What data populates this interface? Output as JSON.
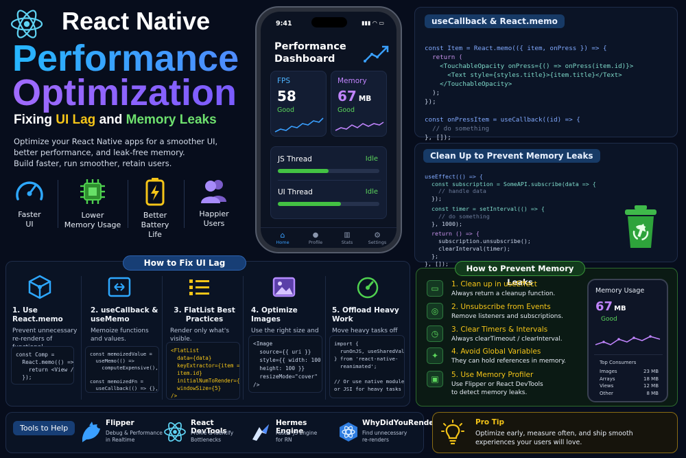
{
  "header": {
    "line1": "React Native",
    "line2": "Performance",
    "line3": "Optimization",
    "subtitle_a": "Fixing ",
    "subtitle_b": "UI Lag",
    "subtitle_c": " and ",
    "subtitle_d": "Memory Leaks",
    "desc1": "Optimize your React Native apps for a smoother UI,",
    "desc2": "better performance, and leak-free memory.",
    "desc3": "Build faster, run smoother, retain users."
  },
  "benefits": [
    {
      "label1": "Faster",
      "label2": "UI",
      "icon": "gauge-icon"
    },
    {
      "label1": "Lower",
      "label2": "Memory Usage",
      "icon": "chip-icon"
    },
    {
      "label1": "Better",
      "label2": "Battery Life",
      "icon": "battery-icon"
    },
    {
      "label1": "Happier",
      "label2": "Users",
      "icon": "users-icon"
    }
  ],
  "phone": {
    "time": "9:41",
    "title1": "Performance",
    "title2": "Dashboard",
    "fps": {
      "label": "FPS",
      "value": "58",
      "status": "Good"
    },
    "memory": {
      "label": "Memory",
      "value": "67",
      "unit": "MB",
      "status": "Good"
    },
    "js_thread": {
      "label": "JS Thread",
      "status": "Idle",
      "level": 0.5
    },
    "ui_thread": {
      "label": "UI Thread",
      "status": "Idle",
      "level": 0.62
    },
    "tabs": [
      "Home",
      "Profile",
      "Stats",
      "Settings"
    ]
  },
  "memo_panel": {
    "title": "useCallback & React.memo",
    "lines": [
      "const Item = React.memo(({ item, onPress }) => {",
      "  return (",
      "    <TouchableOpacity onPress={() => onPress(item.id)}>",
      "      <Text style={styles.title}>{item.title}</Text>",
      "    </TouchableOpacity>",
      "  );",
      "});",
      "",
      "const onPressItem = useCallback((id) => {",
      "  // do something",
      "}, []);"
    ]
  },
  "cleanup_panel": {
    "title": "Clean Up to Prevent Memory Leaks",
    "lines": [
      "useEffect(() => {",
      "  const subscription = SomeAPI.subscribe(data => {",
      "    // handle data",
      "  });",
      "",
      "  const timer = setInterval(() => {",
      "    // do something",
      "  }, 1000);",
      "",
      "  return () => {",
      "    subscription.unsubscribe();",
      "    clearInterval(timer);",
      "  };",
      "}, []);"
    ]
  },
  "fix_lag": {
    "title": "How to Fix UI Lag",
    "steps": [
      {
        "title": "1. Use React.memo",
        "desc": "Prevent unnecessary re-renders of functional components.",
        "code": "const Comp =\n  React.memo(() => {\n    return <View />;\n  });"
      },
      {
        "title": "2. useCallback & useMemo",
        "desc": "Memoize functions and values.",
        "code": "const memoizedValue =\n  useMemo(() =>\n    computeExpensive(), []);\n\nconst memoizedFn =\n  useCallback(() => {}, []);"
      },
      {
        "title": "3. FlatList Best Practices",
        "desc": "Render only what's visible.",
        "code": "<FlatList\n  data={data}\n  keyExtractor={item =>\n  item.id}\n  initialNumToRender={10}\n  windowSize={5}\n/>"
      },
      {
        "title": "4. Optimize Images",
        "desc": "Use the right size and enable caching.",
        "code": "<Image\n  source={{ uri }}\n  style={{ width: 100,\n  height: 100 }}\n  resizeMode=\"cover\"\n/>"
      },
      {
        "title": "5. Offload Heavy Work",
        "desc": "Move heavy tasks off the JS thread.",
        "code": "import {\n  runOnJS, useSharedValue\n} from 'react-native-\n  reanimated';\n\n// Or use native modules\nor JSI for heavy tasks"
      }
    ]
  },
  "prevent_leaks": {
    "title": "How to Prevent Memory Leaks",
    "items": [
      {
        "title": "1. Clean up in useEffect",
        "desc": "Always return a cleanup function.",
        "icon": "monitor-icon"
      },
      {
        "title": "2. Unsubscribe from Events",
        "desc": "Remove listeners and subscriptions.",
        "icon": "target-icon"
      },
      {
        "title": "3. Clear Timers & Intervals",
        "desc": "Always clearTimeout / clearInterval.",
        "icon": "timer-icon"
      },
      {
        "title": "4. Avoid Global Variables",
        "desc": "They can hold references in memory.",
        "icon": "globe-icon"
      },
      {
        "title": "5. Use Memory Profiler",
        "desc": "Use Flipper or React DevTools",
        "desc2": "to detect memory leaks.",
        "icon": "profiler-icon"
      }
    ],
    "mem_card": {
      "title": "Memory Usage",
      "value": "67",
      "unit": "MB",
      "status": "Good",
      "consumers_title": "Top Consumers",
      "consumers": [
        {
          "name": "Images",
          "size": "23 MB"
        },
        {
          "name": "Arrays",
          "size": "18 MB"
        },
        {
          "name": "Views",
          "size": "12 MB"
        },
        {
          "name": "Other",
          "size": "8 MB"
        }
      ]
    }
  },
  "tools": {
    "label": "Tools to Help",
    "items": [
      {
        "name": "Flipper",
        "d1": "Debug & Performance",
        "d2": "in Realtime"
      },
      {
        "name": "React DevTools",
        "d1": "Profile & Identify",
        "d2": "Bottlenecks"
      },
      {
        "name": "Hermes Engine",
        "d1": "Faster JS Engine",
        "d2": "for RN"
      },
      {
        "name": "WhyDidYouRender",
        "d1": "Find unnecessary",
        "d2": "re-renders"
      }
    ]
  },
  "pro_tip": {
    "title": "Pro Tip",
    "line1": "Optimize early, measure often, and ship smooth",
    "line2": "experiences your users will love."
  },
  "colors": {
    "accent_blue": "#2ea8ff",
    "accent_purple": "#8b5cf6",
    "accent_green": "#5cd65c",
    "accent_yellow": "#f5c518"
  }
}
